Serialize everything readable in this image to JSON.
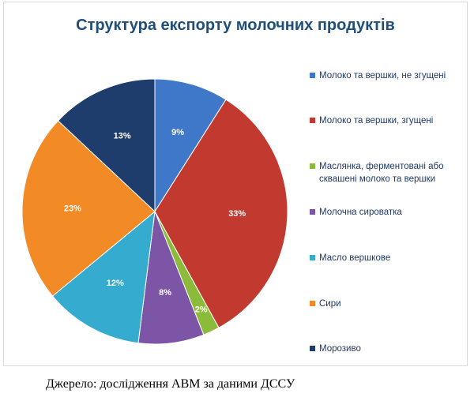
{
  "chart_data": {
    "type": "pie",
    "title": "Структура експорту молочних продуктів",
    "categories": [
      "Молоко та вершки, не згущені",
      "Молоко та вершки, згущені",
      "Маслянка, ферментовані або сквашені молоко та вершки",
      "Молочна сироватка",
      "Масло вершкове",
      "Сири",
      "Морозиво"
    ],
    "values": [
      9,
      33,
      2,
      8,
      12,
      23,
      13
    ],
    "value_labels": [
      "9%",
      "33%",
      "2%",
      "8%",
      "12%",
      "23%",
      "13%"
    ],
    "colors": [
      "#3f78c8",
      "#c2392f",
      "#8cbb3c",
      "#7c55a6",
      "#35abcf",
      "#f28a26",
      "#1f3d6c"
    ],
    "legend": "right",
    "source": "Джерело: дослідження АВМ за даними ДССУ"
  }
}
